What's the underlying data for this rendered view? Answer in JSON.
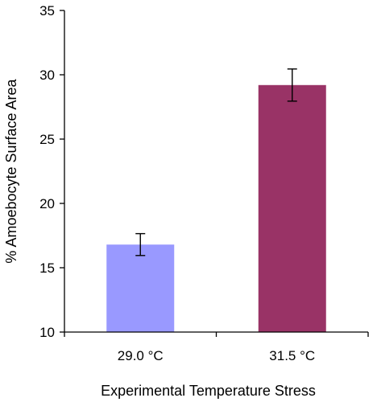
{
  "chart_data": {
    "type": "bar",
    "title": "",
    "xlabel": "Experimental Temperature Stress",
    "ylabel": "% Amoebocyte Surface Area",
    "categories": [
      "29.0 °C",
      "31.5 °C"
    ],
    "values": [
      16.8,
      29.2
    ],
    "errors": [
      0.85,
      1.25
    ],
    "colors": [
      "#9999ff",
      "#993366"
    ],
    "ylim": [
      10,
      35
    ],
    "yticks": [
      10,
      15,
      20,
      25,
      30,
      35
    ],
    "grid": false,
    "legend": "none"
  }
}
